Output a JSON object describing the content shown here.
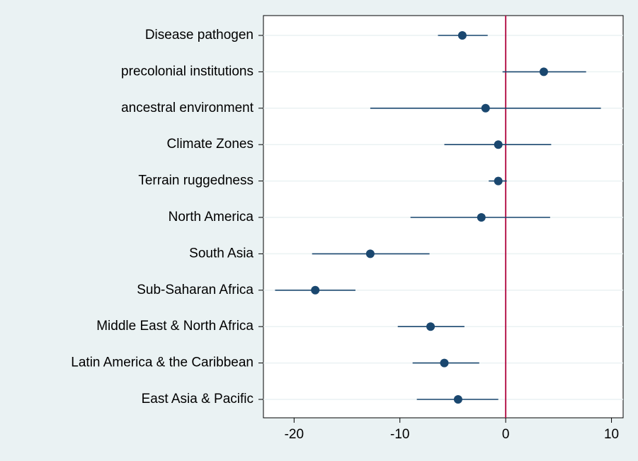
{
  "chart_data": {
    "type": "coefplot",
    "categories": [
      "Disease pathogen",
      "precolonial institutions",
      "ancestral environment",
      "Climate Zones",
      "Terrain ruggedness",
      "North America",
      "South Asia",
      "Sub-Saharan Africa",
      "Middle East & North Africa",
      "Latin America & the Caribbean",
      "East Asia & Pacific"
    ],
    "values": [
      -4.1,
      3.6,
      -1.9,
      -0.7,
      -0.7,
      -2.3,
      -12.8,
      -18.0,
      -7.1,
      -5.8,
      -4.5
    ],
    "ci_low": [
      -6.4,
      -0.3,
      -12.8,
      -5.8,
      -1.6,
      -9.0,
      -18.3,
      -21.8,
      -10.2,
      -8.8,
      -8.4
    ],
    "ci_high": [
      -1.7,
      7.6,
      9.0,
      4.3,
      0.1,
      4.2,
      -7.2,
      -14.2,
      -3.9,
      -2.5,
      -0.7
    ],
    "color": "#1a476f",
    "xlim": [
      -22.9,
      11.1
    ],
    "xticks": [
      -20,
      -10,
      0,
      10
    ],
    "refline": 0,
    "refline_color": "#b5174b",
    "grid": true
  }
}
